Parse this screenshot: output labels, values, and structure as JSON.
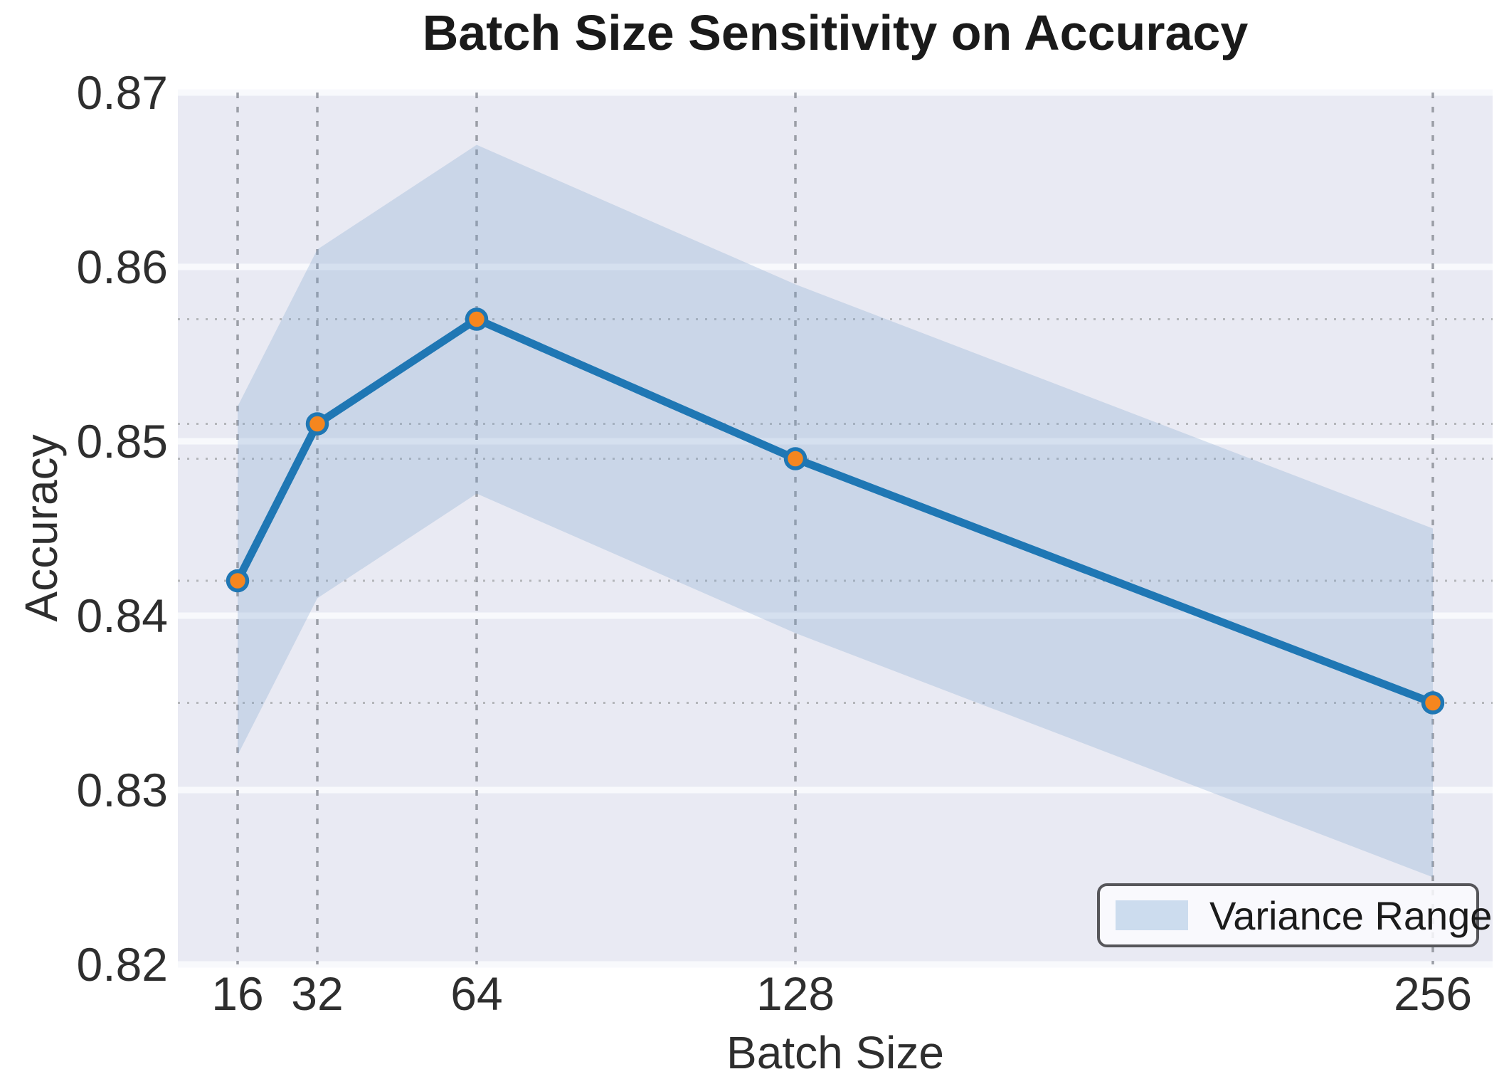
{
  "chart_data": {
    "type": "line",
    "title": "Batch Size Sensitivity on Accuracy",
    "xlabel": "Batch Size",
    "ylabel": "Accuracy",
    "x": [
      16,
      32,
      64,
      128,
      256
    ],
    "xtick_labels": [
      "16",
      "32",
      "64",
      "128",
      "256"
    ],
    "series": [
      {
        "name": "Accuracy",
        "values": [
          0.842,
          0.851,
          0.857,
          0.849,
          0.835
        ]
      }
    ],
    "variance_band": {
      "label": "Variance Range",
      "delta": 0.01,
      "upper": [
        0.852,
        0.861,
        0.867,
        0.859,
        0.845
      ],
      "lower": [
        0.832,
        0.841,
        0.847,
        0.839,
        0.825
      ]
    },
    "xlim": [
      4,
      268
    ],
    "ylim": [
      0.82,
      0.87
    ],
    "yticks": [
      0.82,
      0.83,
      0.84,
      0.85,
      0.86,
      0.87
    ],
    "ytick_labels": [
      "0.82",
      "0.83",
      "0.84",
      "0.85",
      "0.86",
      "0.87"
    ],
    "grid": {
      "major_horizontal": "solid-white",
      "vertical_at_xticks": "dashed-gray",
      "horizontal_at_data_values": "dotted-gray"
    },
    "legend": {
      "position": "lower-right",
      "entries": [
        "Variance Range"
      ]
    }
  },
  "style": {
    "line_color": "#1f77b4",
    "marker_color": "#f5861f",
    "band_fill": "rgba(122,160,205,0.28)",
    "legend_swatch": "#ccdcee",
    "plot_bg": "#e9eaf3",
    "major_grid": "#f8f9fc",
    "dash_grid": "#9b9ea6",
    "dot_grid": "#b4b6ba",
    "title_color": "#1a1a1a",
    "tick_color": "#2e2e2e",
    "legend_border": "#56565a"
  }
}
